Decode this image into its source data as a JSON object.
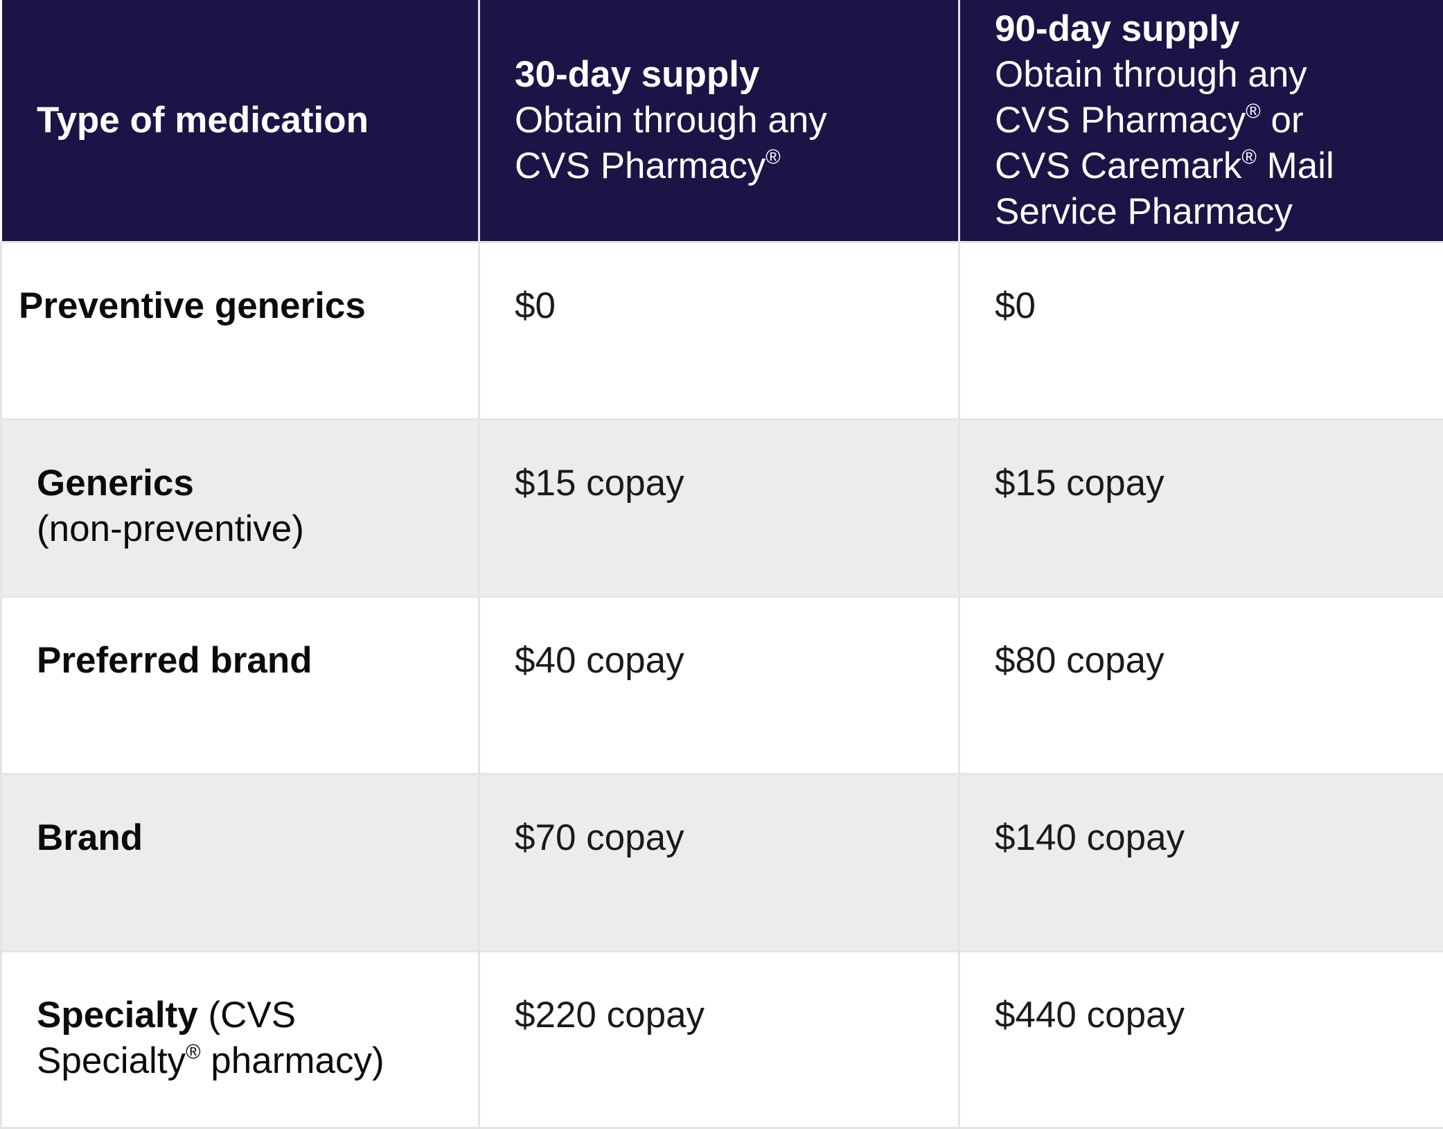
{
  "header": {
    "type_label": "Type of medication",
    "col30": {
      "title": "30-day supply",
      "line1": "Obtain through any",
      "line2": "CVS Pharmacy",
      "line2_sup": "®"
    },
    "col90": {
      "title": "90-day supply",
      "line1": "Obtain through any",
      "line2": "CVS Pharmacy",
      "line2_sup": "®",
      "line2_tail": " or",
      "line3": "CVS Caremark",
      "line3_sup": "®",
      "line3_tail": " Mail",
      "line4": "Service Pharmacy"
    }
  },
  "rows": [
    {
      "label": "Preventive generics",
      "label_note": "",
      "day30": "$0",
      "day90": "$0"
    },
    {
      "label": "Generics",
      "label_note": "(non-preventive)",
      "day30": "$15 copay",
      "day90": "$15 copay"
    },
    {
      "label": "Preferred brand",
      "label_note": "",
      "day30": "$40 copay",
      "day90": "$80 copay"
    },
    {
      "label": "Brand",
      "label_note": "",
      "day30": "$70 copay",
      "day90": "$140 copay"
    },
    {
      "label": "Specialty",
      "label_note_a": " (CVS",
      "label_note_b": "Specialty",
      "label_note_b_sup": "®",
      "label_note_c": " pharmacy)",
      "day30": "$220 copay",
      "day90": "$440 copay"
    }
  ],
  "colors": {
    "header_bg": "#1b1446",
    "header_text": "#ffffff",
    "alt_row_bg": "#ececec",
    "border": "#e4e4e4"
  }
}
